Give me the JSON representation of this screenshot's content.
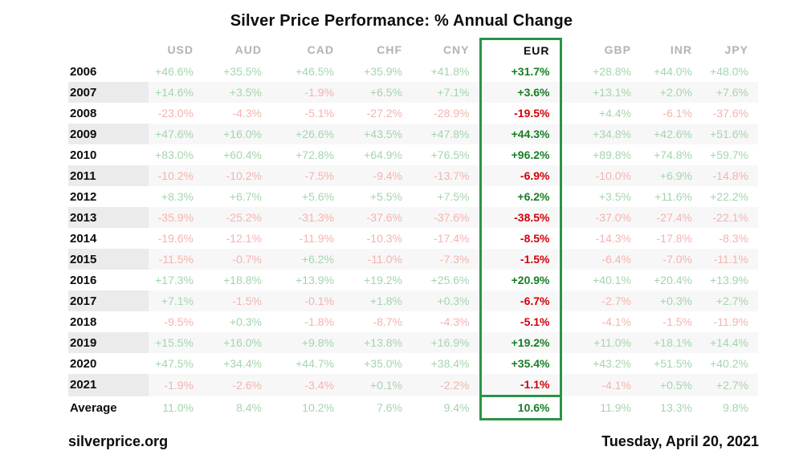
{
  "title": "Silver Price Performance: % Annual Change",
  "footer": {
    "source": "silverprice.org",
    "date": "Tuesday, April 20, 2021"
  },
  "colors": {
    "positive_muted": "#a4d5ac",
    "negative_muted": "#f5b3ae",
    "highlight_positive": "#177e25",
    "highlight_negative": "#d2000a",
    "highlight_border": "#2b9348",
    "header_gray": "#b3b3b3",
    "text_ink": "#0d0d0d",
    "row_stripe": "#f7f7f7",
    "row_stripe_dark": "#ebebeb"
  },
  "chart_data": {
    "type": "table",
    "title": "Silver Price Performance: % Annual Change",
    "columns": [
      "USD",
      "AUD",
      "CAD",
      "CHF",
      "CNY",
      "EUR",
      "GBP",
      "INR",
      "JPY"
    ],
    "highlight_column": "EUR",
    "row_labels": [
      "2006",
      "2007",
      "2008",
      "2009",
      "2010",
      "2011",
      "2012",
      "2013",
      "2014",
      "2015",
      "2016",
      "2017",
      "2018",
      "2019",
      "2020",
      "2021",
      "Average"
    ],
    "rows": [
      {
        "label": "2006",
        "values": [
          "+46.6%",
          "+35.5%",
          "+46.5%",
          "+35.9%",
          "+41.8%",
          "+31.7%",
          "+28.8%",
          "+44.0%",
          "+48.0%"
        ]
      },
      {
        "label": "2007",
        "values": [
          "+14.6%",
          "+3.5%",
          "-1.9%",
          "+6.5%",
          "+7.1%",
          "+3.6%",
          "+13.1%",
          "+2.0%",
          "+7.6%"
        ]
      },
      {
        "label": "2008",
        "values": [
          "-23.0%",
          "-4.3%",
          "-5.1%",
          "-27.2%",
          "-28.9%",
          "-19.5%",
          "+4.4%",
          "-6.1%",
          "-37.6%"
        ]
      },
      {
        "label": "2009",
        "values": [
          "+47.6%",
          "+16.0%",
          "+26.6%",
          "+43.5%",
          "+47.8%",
          "+44.3%",
          "+34.8%",
          "+42.6%",
          "+51.6%"
        ]
      },
      {
        "label": "2010",
        "values": [
          "+83.0%",
          "+60.4%",
          "+72.8%",
          "+64.9%",
          "+76.5%",
          "+96.2%",
          "+89.8%",
          "+74.8%",
          "+59.7%"
        ]
      },
      {
        "label": "2011",
        "values": [
          "-10.2%",
          "-10.2%",
          "-7.5%",
          "-9.4%",
          "-13.7%",
          "-6.9%",
          "-10.0%",
          "+6.9%",
          "-14.8%"
        ]
      },
      {
        "label": "2012",
        "values": [
          "+8.3%",
          "+6.7%",
          "+5.6%",
          "+5.5%",
          "+7.5%",
          "+6.2%",
          "+3.5%",
          "+11.6%",
          "+22.2%"
        ]
      },
      {
        "label": "2013",
        "values": [
          "-35.9%",
          "-25.2%",
          "-31.3%",
          "-37.6%",
          "-37.6%",
          "-38.5%",
          "-37.0%",
          "-27.4%",
          "-22.1%"
        ]
      },
      {
        "label": "2014",
        "values": [
          "-19.6%",
          "-12.1%",
          "-11.9%",
          "-10.3%",
          "-17.4%",
          "-8.5%",
          "-14.3%",
          "-17.8%",
          "-8.3%"
        ]
      },
      {
        "label": "2015",
        "values": [
          "-11.5%",
          "-0.7%",
          "+6.2%",
          "-11.0%",
          "-7.3%",
          "-1.5%",
          "-6.4%",
          "-7.0%",
          "-11.1%"
        ]
      },
      {
        "label": "2016",
        "values": [
          "+17.3%",
          "+18.8%",
          "+13.9%",
          "+19.2%",
          "+25.6%",
          "+20.9%",
          "+40.1%",
          "+20.4%",
          "+13.9%"
        ]
      },
      {
        "label": "2017",
        "values": [
          "+7.1%",
          "-1.5%",
          "-0.1%",
          "+1.8%",
          "+0.3%",
          "-6.7%",
          "-2.7%",
          "+0.3%",
          "+2.7%"
        ]
      },
      {
        "label": "2018",
        "values": [
          "-9.5%",
          "+0.3%",
          "-1.8%",
          "-8.7%",
          "-4.3%",
          "-5.1%",
          "-4.1%",
          "-1.5%",
          "-11.9%"
        ]
      },
      {
        "label": "2019",
        "values": [
          "+15.5%",
          "+16.0%",
          "+9.8%",
          "+13.8%",
          "+16.9%",
          "+19.2%",
          "+11.0%",
          "+18.1%",
          "+14.4%"
        ]
      },
      {
        "label": "2020",
        "values": [
          "+47.5%",
          "+34.4%",
          "+44.7%",
          "+35.0%",
          "+38.4%",
          "+35.4%",
          "+43.2%",
          "+51.5%",
          "+40.2%"
        ]
      },
      {
        "label": "2021",
        "values": [
          "-1.9%",
          "-2.6%",
          "-3.4%",
          "+0.1%",
          "-2.2%",
          "-1.1%",
          "-4.1%",
          "+0.5%",
          "+2.7%"
        ]
      },
      {
        "label": "Average",
        "values": [
          "11.0%",
          "8.4%",
          "10.2%",
          "7.6%",
          "9.4%",
          "10.6%",
          "11.9%",
          "13.3%",
          "9.8%"
        ]
      }
    ]
  }
}
